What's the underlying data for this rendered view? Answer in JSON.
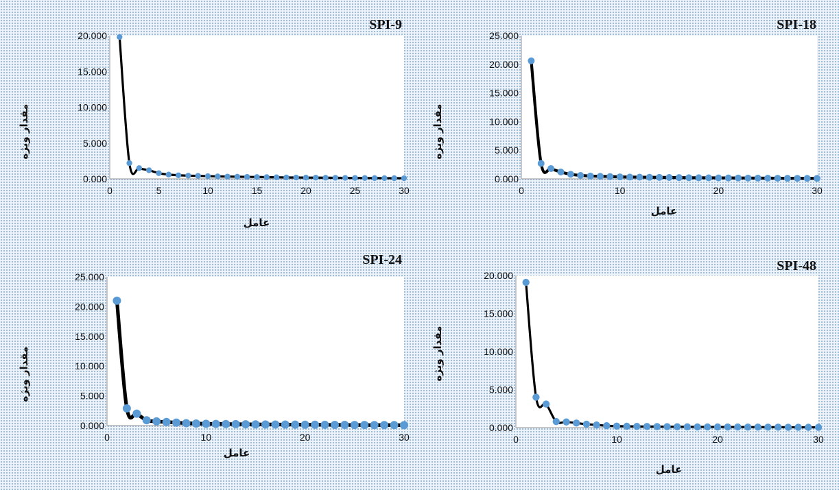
{
  "chart_data": [
    {
      "type": "line",
      "title": "SPI-9",
      "xlabel": "عامل",
      "ylabel": "مقدار ویژه",
      "xlim": [
        0,
        30
      ],
      "ylim": [
        0,
        20000
      ],
      "xticks": [
        0,
        5,
        10,
        15,
        20,
        25,
        30
      ],
      "yticks": [
        "0.000",
        "5.000",
        "10.000",
        "15.000",
        "20.000"
      ],
      "grid": false,
      "colors": {
        "line": "#000000",
        "marker": "#5b9bd5"
      },
      "series": [
        {
          "x": [
            1,
            2,
            3,
            4,
            5,
            6,
            7,
            8,
            9,
            10,
            11,
            12,
            13,
            14,
            15,
            16,
            17,
            18,
            19,
            20,
            21,
            22,
            23,
            24,
            25,
            26,
            27,
            28,
            29,
            30
          ],
          "values": [
            19800,
            2200,
            1500,
            1200,
            800,
            600,
            500,
            450,
            420,
            380,
            350,
            320,
            300,
            280,
            260,
            240,
            220,
            200,
            190,
            180,
            170,
            160,
            150,
            140,
            130,
            120,
            110,
            100,
            95,
            90
          ]
        }
      ]
    },
    {
      "type": "line",
      "title": "SPI-18",
      "xlabel": "عامل",
      "ylabel": "مقدار ویژه",
      "xlim": [
        0,
        30
      ],
      "ylim": [
        0,
        25000
      ],
      "xticks": [
        0,
        10,
        20,
        30
      ],
      "yticks": [
        "0.000",
        "5.000",
        "10.000",
        "15.000",
        "20.000",
        "25.000"
      ],
      "grid": false,
      "colors": {
        "line": "#000000",
        "marker": "#5b9bd5"
      },
      "series": [
        {
          "x": [
            1,
            2,
            3,
            4,
            5,
            6,
            7,
            8,
            9,
            10,
            11,
            12,
            13,
            14,
            15,
            16,
            17,
            18,
            19,
            20,
            21,
            22,
            23,
            24,
            25,
            26,
            27,
            28,
            29,
            30
          ],
          "values": [
            20600,
            2700,
            1800,
            1200,
            800,
            600,
            500,
            450,
            400,
            350,
            320,
            300,
            280,
            260,
            240,
            220,
            200,
            190,
            180,
            170,
            160,
            150,
            140,
            130,
            120,
            110,
            100,
            95,
            90,
            85
          ]
        }
      ]
    },
    {
      "type": "line",
      "title": "SPI-24",
      "xlabel": "عامل",
      "ylabel": "مقدار ویژه",
      "xlim": [
        0,
        30
      ],
      "ylim": [
        0,
        25000
      ],
      "xticks": [
        0,
        10,
        20,
        30
      ],
      "yticks": [
        "0.000",
        "5.000",
        "10.000",
        "15.000",
        "20.000",
        "25.000"
      ],
      "grid": false,
      "colors": {
        "line": "#000000",
        "marker": "#5b9bd5"
      },
      "series": [
        {
          "x": [
            1,
            2,
            3,
            4,
            5,
            6,
            7,
            8,
            9,
            10,
            11,
            12,
            13,
            14,
            15,
            16,
            17,
            18,
            19,
            20,
            21,
            22,
            23,
            24,
            25,
            26,
            27,
            28,
            29,
            30
          ],
          "values": [
            21000,
            2900,
            2000,
            900,
            700,
            600,
            500,
            400,
            350,
            300,
            280,
            260,
            240,
            220,
            200,
            190,
            180,
            170,
            160,
            150,
            140,
            130,
            120,
            110,
            100,
            95,
            90,
            85,
            80,
            75
          ]
        }
      ]
    },
    {
      "type": "line",
      "title": "SPI-48",
      "xlabel": "عامل",
      "ylabel": "مقدار ویژه",
      "xlim": [
        0,
        30
      ],
      "ylim": [
        0,
        20000
      ],
      "xticks": [
        0,
        10,
        20,
        30
      ],
      "yticks": [
        "0.000",
        "5.000",
        "10.000",
        "15.000",
        "20.000"
      ],
      "grid": false,
      "colors": {
        "line": "#000000",
        "marker": "#5b9bd5"
      },
      "series": [
        {
          "x": [
            1,
            2,
            3,
            4,
            5,
            6,
            7,
            8,
            9,
            10,
            11,
            12,
            13,
            14,
            15,
            16,
            17,
            18,
            19,
            20,
            21,
            22,
            23,
            24,
            25,
            26,
            27,
            28,
            29,
            30
          ],
          "values": [
            19100,
            4000,
            3100,
            800,
            750,
            600,
            450,
            350,
            250,
            200,
            180,
            160,
            150,
            140,
            130,
            120,
            110,
            100,
            95,
            90,
            85,
            80,
            75,
            70,
            65,
            60,
            55,
            50,
            45,
            40
          ]
        }
      ]
    }
  ]
}
